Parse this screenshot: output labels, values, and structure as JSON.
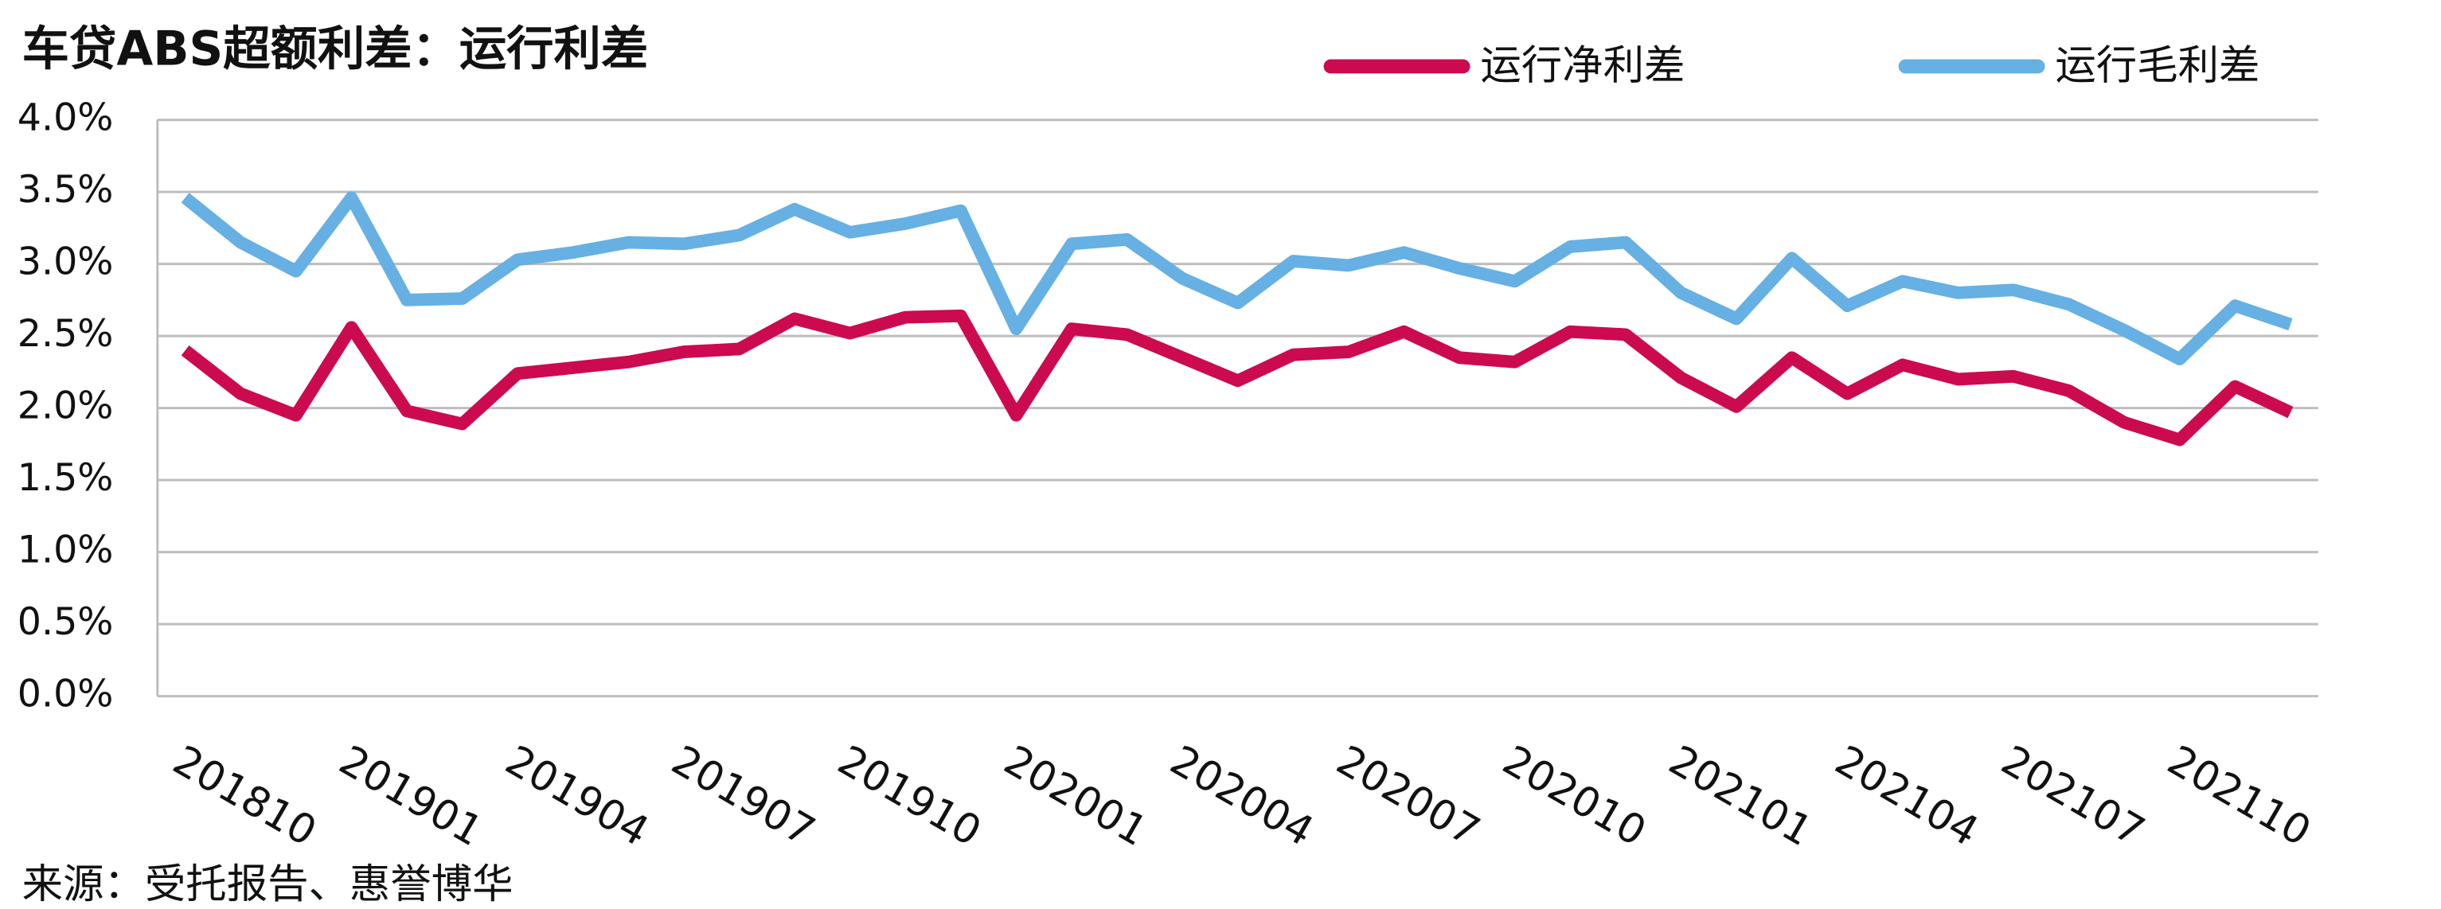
{
  "chart_data": {
    "type": "line",
    "title": "车贷ABS超额利差：运行利差",
    "source": "来源：受托报告、惠誉博华",
    "categories": [
      "201810",
      null,
      null,
      "201901",
      null,
      null,
      "201904",
      null,
      null,
      "201907",
      null,
      null,
      "201910",
      null,
      null,
      "202001",
      null,
      null,
      "202004",
      null,
      null,
      "202007",
      null,
      null,
      "202010",
      null,
      null,
      "202101",
      null,
      null,
      "202104",
      null,
      null,
      "202107",
      null,
      null,
      "202110",
      null,
      null
    ],
    "series": [
      {
        "name": "运行净利差",
        "color": "#cc0a4f",
        "values": [
          2.4,
          2.1,
          1.95,
          2.56,
          1.98,
          1.89,
          2.24,
          2.28,
          2.32,
          2.39,
          2.41,
          2.62,
          2.52,
          2.63,
          2.64,
          1.95,
          2.55,
          2.51,
          2.35,
          2.19,
          2.37,
          2.39,
          2.53,
          2.35,
          2.32,
          2.53,
          2.51,
          2.21,
          2.01,
          2.35,
          2.1,
          2.3,
          2.2,
          2.22,
          2.12,
          1.9,
          1.78,
          2.15,
          1.97
        ]
      },
      {
        "name": "运行毛利差",
        "color": "#66b0e3",
        "values": [
          3.46,
          3.15,
          2.95,
          3.46,
          2.75,
          2.76,
          3.03,
          3.08,
          3.15,
          3.14,
          3.2,
          3.38,
          3.22,
          3.28,
          3.37,
          2.55,
          3.14,
          3.17,
          2.9,
          2.73,
          3.02,
          2.99,
          3.08,
          2.97,
          2.88,
          3.12,
          3.15,
          2.8,
          2.62,
          3.04,
          2.71,
          2.88,
          2.8,
          2.82,
          2.72,
          2.54,
          2.34,
          2.71,
          2.58
        ]
      }
    ],
    "ylim": [
      0,
      4
    ],
    "yticks": [
      {
        "value": 0,
        "label": "0.0%"
      },
      {
        "value": 0.5,
        "label": "0.5%"
      },
      {
        "value": 1,
        "label": "1.0%"
      },
      {
        "value": 1.5,
        "label": "1.5%"
      },
      {
        "value": 2,
        "label": "2.0%"
      },
      {
        "value": 2.5,
        "label": "2.5%"
      },
      {
        "value": 3,
        "label": "3.0%"
      },
      {
        "value": 3.5,
        "label": "3.5%"
      },
      {
        "value": 4,
        "label": "4.0%"
      }
    ],
    "grid": true,
    "legend": "top-right"
  }
}
